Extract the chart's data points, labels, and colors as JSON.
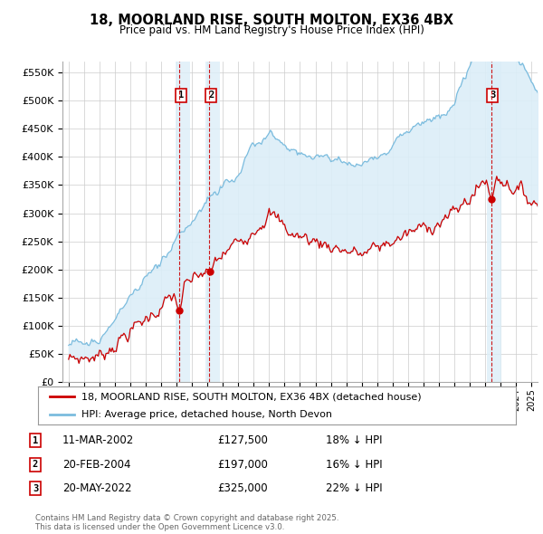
{
  "title": "18, MOORLAND RISE, SOUTH MOLTON, EX36 4BX",
  "subtitle": "Price paid vs. HM Land Registry's House Price Index (HPI)",
  "legend_line1": "18, MOORLAND RISE, SOUTH MOLTON, EX36 4BX (detached house)",
  "legend_line2": "HPI: Average price, detached house, North Devon",
  "transactions": [
    {
      "label": "1",
      "date": "11-MAR-2002",
      "price": 127500,
      "x": 2002.19,
      "note": "18% ↓ HPI"
    },
    {
      "label": "2",
      "date": "20-FEB-2004",
      "price": 197000,
      "x": 2004.13,
      "note": "16% ↓ HPI"
    },
    {
      "label": "3",
      "date": "20-MAY-2022",
      "price": 325000,
      "x": 2022.38,
      "note": "22% ↓ HPI"
    }
  ],
  "footer": "Contains HM Land Registry data © Crown copyright and database right 2025.\nThis data is licensed under the Open Government Licence v3.0.",
  "hpi_color": "#7bbcde",
  "price_color": "#cc0000",
  "shade_color": "#dceef8",
  "background_color": "#ffffff",
  "grid_color": "#cccccc",
  "ylim": [
    0,
    570000
  ],
  "yticks": [
    0,
    50000,
    100000,
    150000,
    200000,
    250000,
    300000,
    350000,
    400000,
    450000,
    500000,
    550000
  ],
  "xlim": [
    1994.6,
    2025.4
  ]
}
